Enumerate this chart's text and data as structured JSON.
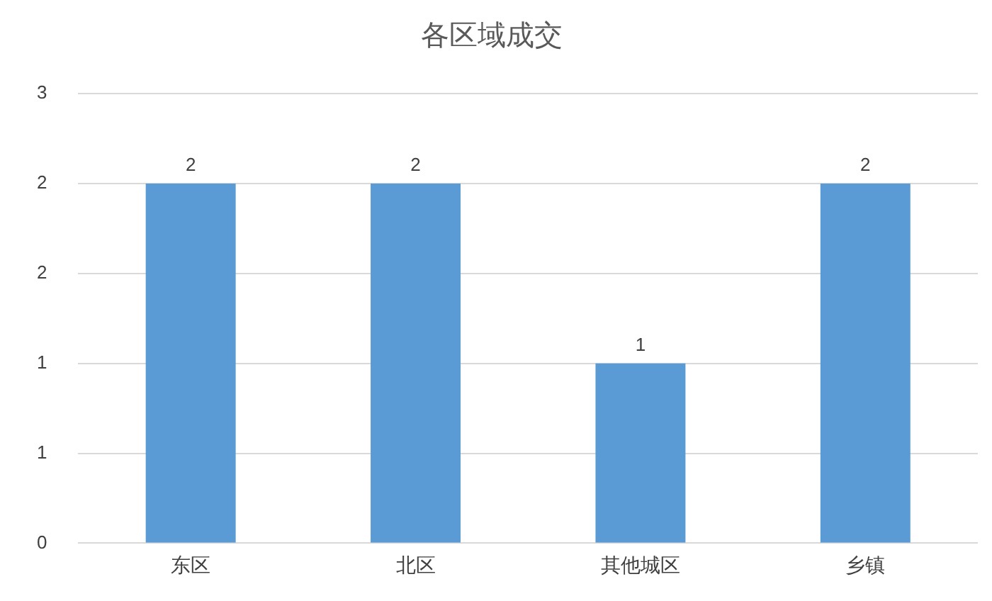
{
  "chart_data": {
    "type": "bar",
    "title": "各区域成交",
    "categories": [
      "东区",
      "北区",
      "其他城区",
      "乡镇"
    ],
    "values": [
      2.4,
      2.4,
      1.2,
      2.4
    ],
    "value_labels": [
      "2",
      "2",
      "1",
      "2"
    ],
    "color": "#5b9bd5",
    "ylim": [
      0,
      3
    ],
    "yticks": [
      0,
      {
        "value": 0.6,
        "label": "1"
      },
      {
        "value": 1.2,
        "label": "1"
      },
      {
        "value": 1.8,
        "label": "2"
      },
      {
        "value": 2.4,
        "label": "2"
      },
      3
    ],
    "grid": "y",
    "legend": false
  }
}
